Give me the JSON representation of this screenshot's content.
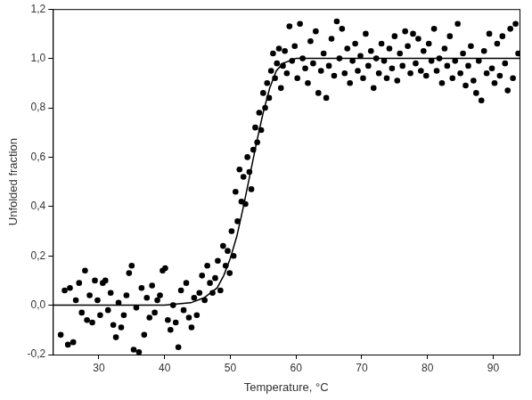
{
  "chart_data": {
    "type": "scatter",
    "x_label": "Temperature, °C",
    "y_label": "Unfolded fraction",
    "xlim": [
      23,
      94
    ],
    "xticks": [
      30,
      40,
      50,
      60,
      70,
      80,
      90
    ],
    "ylim": [
      -0.2,
      1.2
    ],
    "yticks": [
      {
        "value": -0.2,
        "label": "-0,2"
      },
      {
        "value": 0,
        "label": "0,0"
      },
      {
        "value": 0.2,
        "label": "0,2"
      },
      {
        "value": 0.4,
        "label": "0,4"
      },
      {
        "value": 0.6,
        "label": "0,6"
      },
      {
        "value": 0.8,
        "label": "0,8"
      },
      {
        "value": 1.0,
        "label": "1,0"
      },
      {
        "value": 1.2,
        "label": "1,2"
      }
    ],
    "grid": false,
    "series": [
      {
        "type": "scatter",
        "marker": "circle",
        "color": "#000000",
        "x": [
          24.2,
          24.8,
          25.3,
          25.6,
          26.1,
          26.5,
          27.0,
          27.4,
          27.9,
          28.2,
          28.6,
          29.0,
          29.4,
          29.8,
          30.2,
          30.6,
          31.0,
          31.4,
          31.8,
          32.2,
          32.6,
          33.0,
          33.4,
          33.8,
          34.2,
          34.6,
          35.0,
          35.3,
          35.7,
          36.1,
          36.5,
          36.9,
          37.3,
          37.7,
          38.1,
          38.5,
          38.9,
          39.3,
          39.7,
          40.1,
          40.5,
          40.9,
          41.3,
          41.7,
          42.1,
          42.5,
          42.9,
          43.3,
          43.7,
          44.1,
          44.5,
          44.9,
          45.3,
          45.7,
          46.1,
          46.5,
          46.9,
          47.3,
          47.7,
          48.1,
          48.5,
          48.9,
          49.3,
          49.6,
          49.9,
          50.2,
          50.5,
          50.8,
          51.1,
          51.4,
          51.7,
          52.0,
          52.3,
          52.6,
          52.9,
          53.2,
          53.5,
          53.8,
          54.1,
          54.4,
          54.7,
          55.0,
          55.3,
          55.6,
          55.9,
          56.2,
          56.5,
          56.8,
          57.1,
          57.4,
          57.7,
          58.0,
          58.3,
          58.6,
          59.0,
          59.4,
          59.8,
          60.2,
          60.6,
          61.0,
          61.4,
          61.8,
          62.2,
          62.6,
          63.0,
          63.4,
          63.8,
          64.2,
          64.6,
          65.0,
          65.4,
          65.8,
          66.2,
          66.6,
          67.0,
          67.4,
          67.8,
          68.2,
          68.6,
          69.0,
          69.4,
          69.8,
          70.2,
          70.6,
          71.0,
          71.4,
          71.8,
          72.2,
          72.6,
          73.0,
          73.4,
          73.8,
          74.2,
          74.6,
          75.0,
          75.4,
          75.8,
          76.2,
          76.6,
          77.0,
          77.4,
          77.8,
          78.2,
          78.6,
          79.0,
          79.4,
          79.8,
          80.2,
          80.6,
          81.0,
          81.4,
          81.8,
          82.2,
          82.6,
          83.0,
          83.4,
          83.8,
          84.2,
          84.6,
          85.0,
          85.4,
          85.8,
          86.2,
          86.6,
          87.0,
          87.4,
          87.8,
          88.2,
          88.6,
          89.0,
          89.4,
          89.8,
          90.2,
          90.6,
          91.0,
          91.4,
          91.8,
          92.2,
          92.6,
          93.0,
          93.4,
          93.8
        ],
        "values": [
          -0.12,
          0.06,
          -0.16,
          0.07,
          -0.15,
          0.02,
          0.09,
          -0.03,
          0.14,
          -0.06,
          0.04,
          -0.07,
          0.1,
          0.02,
          -0.04,
          0.09,
          0.1,
          -0.02,
          0.05,
          -0.08,
          -0.13,
          0.01,
          -0.09,
          -0.04,
          0.04,
          0.13,
          0.16,
          -0.18,
          -0.01,
          -0.19,
          0.07,
          -0.12,
          0.03,
          -0.05,
          0.08,
          -0.03,
          0.02,
          0.04,
          0.14,
          0.15,
          -0.06,
          -0.1,
          0.0,
          -0.07,
          -0.17,
          0.06,
          -0.02,
          0.09,
          -0.05,
          -0.09,
          0.03,
          -0.04,
          0.05,
          0.12,
          0.02,
          0.16,
          0.09,
          0.05,
          0.11,
          0.18,
          0.06,
          0.24,
          0.16,
          0.22,
          0.13,
          0.3,
          0.2,
          0.46,
          0.34,
          0.55,
          0.42,
          0.52,
          0.41,
          0.6,
          0.54,
          0.47,
          0.63,
          0.72,
          0.66,
          0.78,
          0.71,
          0.86,
          0.8,
          0.9,
          0.84,
          0.95,
          1.02,
          0.92,
          0.98,
          1.04,
          0.88,
          0.97,
          1.03,
          0.94,
          1.13,
          0.99,
          1.05,
          0.92,
          1.14,
          1.0,
          0.96,
          0.9,
          1.07,
          0.98,
          1.11,
          0.86,
          0.95,
          1.02,
          0.84,
          0.97,
          1.08,
          0.93,
          1.15,
          1.0,
          1.12,
          0.94,
          1.04,
          0.9,
          0.99,
          1.06,
          0.95,
          1.01,
          0.92,
          1.1,
          0.97,
          1.03,
          0.88,
          1.0,
          0.94,
          1.06,
          0.99,
          0.92,
          1.04,
          0.96,
          1.09,
          0.91,
          1.02,
          0.97,
          1.11,
          1.05,
          0.94,
          1.1,
          0.98,
          1.08,
          0.95,
          1.03,
          0.93,
          1.06,
          0.99,
          1.12,
          0.95,
          1.0,
          0.9,
          1.04,
          0.97,
          1.09,
          0.92,
          0.99,
          1.14,
          0.94,
          1.02,
          0.89,
          0.97,
          1.05,
          0.91,
          0.86,
          0.99,
          0.83,
          1.03,
          0.94,
          1.1,
          0.96,
          0.9,
          1.06,
          0.93,
          1.09,
          0.98,
          0.87,
          1.12,
          0.92,
          1.14,
          1.02
        ]
      },
      {
        "type": "line",
        "line_style": "solid",
        "color": "#000000",
        "x": [
          23,
          30,
          40,
          44,
          46,
          48,
          49,
          50,
          51,
          52,
          53,
          54,
          55,
          56,
          57,
          58,
          60,
          65,
          94
        ],
        "values": [
          0,
          0,
          0,
          0.01,
          0.03,
          0.07,
          0.12,
          0.19,
          0.28,
          0.4,
          0.53,
          0.66,
          0.78,
          0.88,
          0.95,
          0.98,
          1.0,
          1.0,
          1.0
        ]
      }
    ]
  }
}
